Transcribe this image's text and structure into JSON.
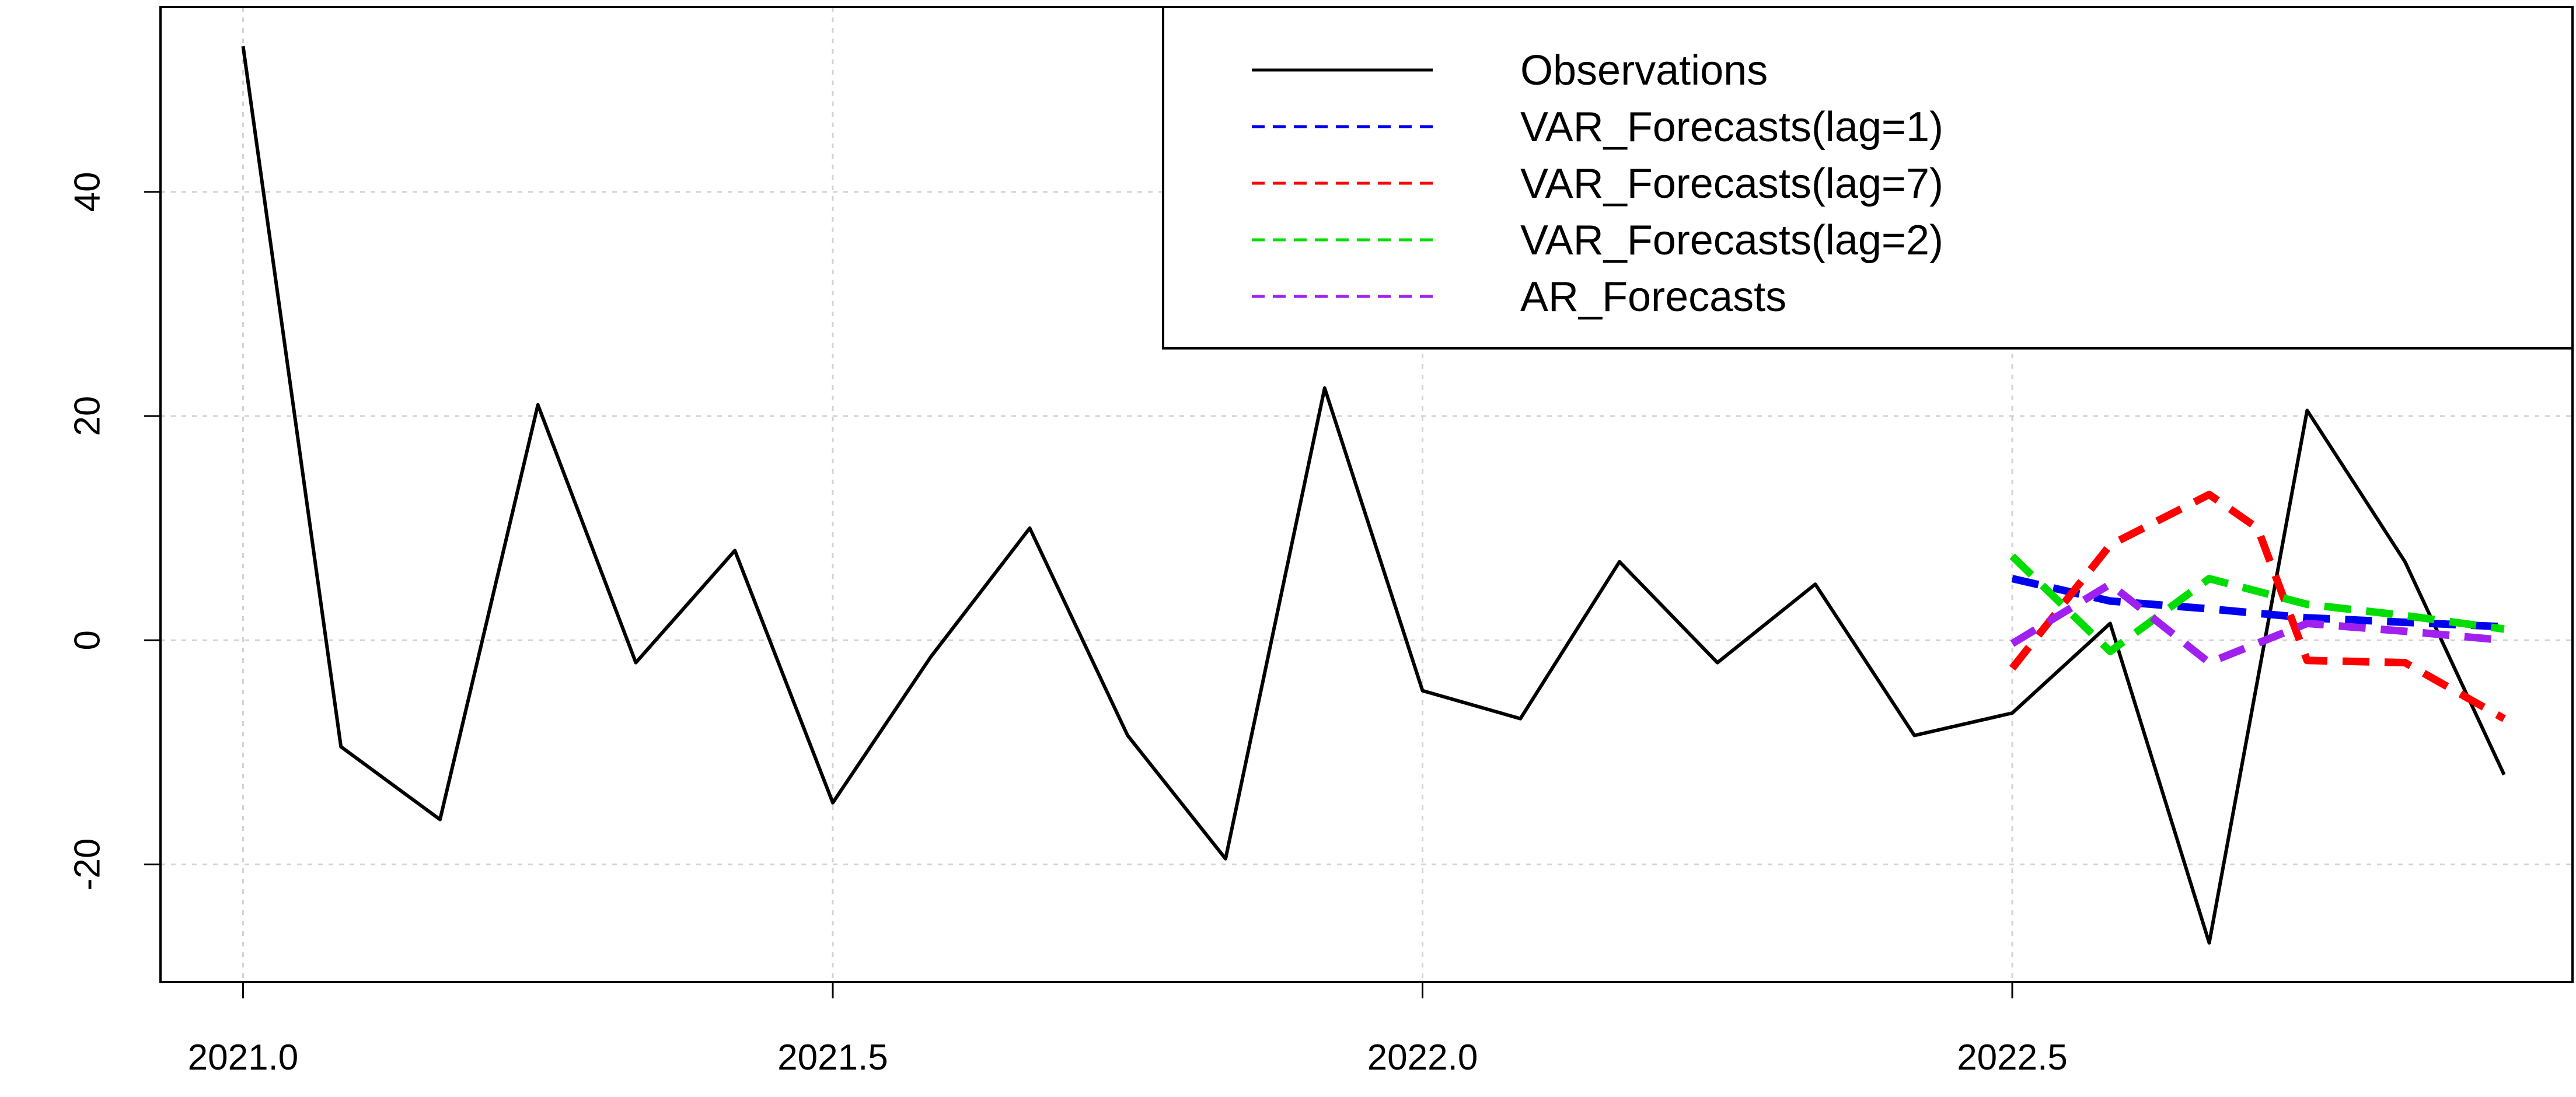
{
  "chart_data": {
    "type": "line",
    "title": "",
    "xlabel": "",
    "ylabel": "",
    "xlim": [
      2020.93,
      2022.975
    ],
    "ylim": [
      -30.5,
      56.5
    ],
    "x_ticks": [
      {
        "value": 2021.0,
        "label": "2021.0"
      },
      {
        "value": 2021.5,
        "label": "2021.5"
      },
      {
        "value": 2022.0,
        "label": "2022.0"
      },
      {
        "value": 2022.5,
        "label": "2022.5"
      }
    ],
    "y_ticks": [
      {
        "value": -20,
        "label": "-20"
      },
      {
        "value": 0,
        "label": "0"
      },
      {
        "value": 20,
        "label": "20"
      },
      {
        "value": 40,
        "label": "40"
      }
    ],
    "grid": true,
    "legend_position": "top-right",
    "series": [
      {
        "name": "Observations",
        "color": "#000000",
        "dash": "solid",
        "x": [
          2021.0,
          2021.083,
          2021.167,
          2021.25,
          2021.333,
          2021.417,
          2021.5,
          2021.583,
          2021.667,
          2021.75,
          2021.833,
          2021.917,
          2022.0,
          2022.083,
          2022.167,
          2022.25,
          2022.333,
          2022.417,
          2022.5,
          2022.583,
          2022.667,
          2022.75,
          2022.833,
          2022.917
        ],
        "values": [
          53,
          -9.5,
          -16,
          21,
          -2,
          8,
          -14.5,
          -1.5,
          10,
          -8.5,
          -19.5,
          22.5,
          -4.5,
          -7,
          7,
          -2,
          5,
          -8.5,
          -6.5,
          1.5,
          -27,
          20.5,
          7,
          -12
        ]
      },
      {
        "name": "VAR_Forecasts(lag=1)",
        "color": "#0000ee",
        "dash": "dashed",
        "x": [
          2022.5,
          2022.583,
          2022.667,
          2022.75,
          2022.833,
          2022.917
        ],
        "values": [
          5.5,
          3.5,
          2.8,
          2.0,
          1.6,
          1.2
        ]
      },
      {
        "name": "VAR_Forecasts(lag=7)",
        "color": "#ff0000",
        "dash": "dashed",
        "x": [
          2022.5,
          2022.583,
          2022.667,
          2022.708,
          2022.75,
          2022.833,
          2022.917
        ],
        "values": [
          -2.5,
          8.5,
          13,
          10,
          -1.8,
          -2,
          -7
        ]
      },
      {
        "name": "VAR_Forecasts(lag=2)",
        "color": "#00dd00",
        "dash": "dashed",
        "x": [
          2022.5,
          2022.583,
          2022.667,
          2022.75,
          2022.833,
          2022.917
        ],
        "values": [
          7.5,
          -1,
          5.5,
          3.2,
          2.2,
          1.0
        ]
      },
      {
        "name": "AR_Forecasts",
        "color": "#a020f0",
        "dash": "dashed",
        "x": [
          2022.5,
          2022.583,
          2022.667,
          2022.75,
          2022.833,
          2022.917
        ],
        "values": [
          -0.3,
          5,
          -2,
          1.5,
          0.8,
          0
        ]
      }
    ]
  }
}
